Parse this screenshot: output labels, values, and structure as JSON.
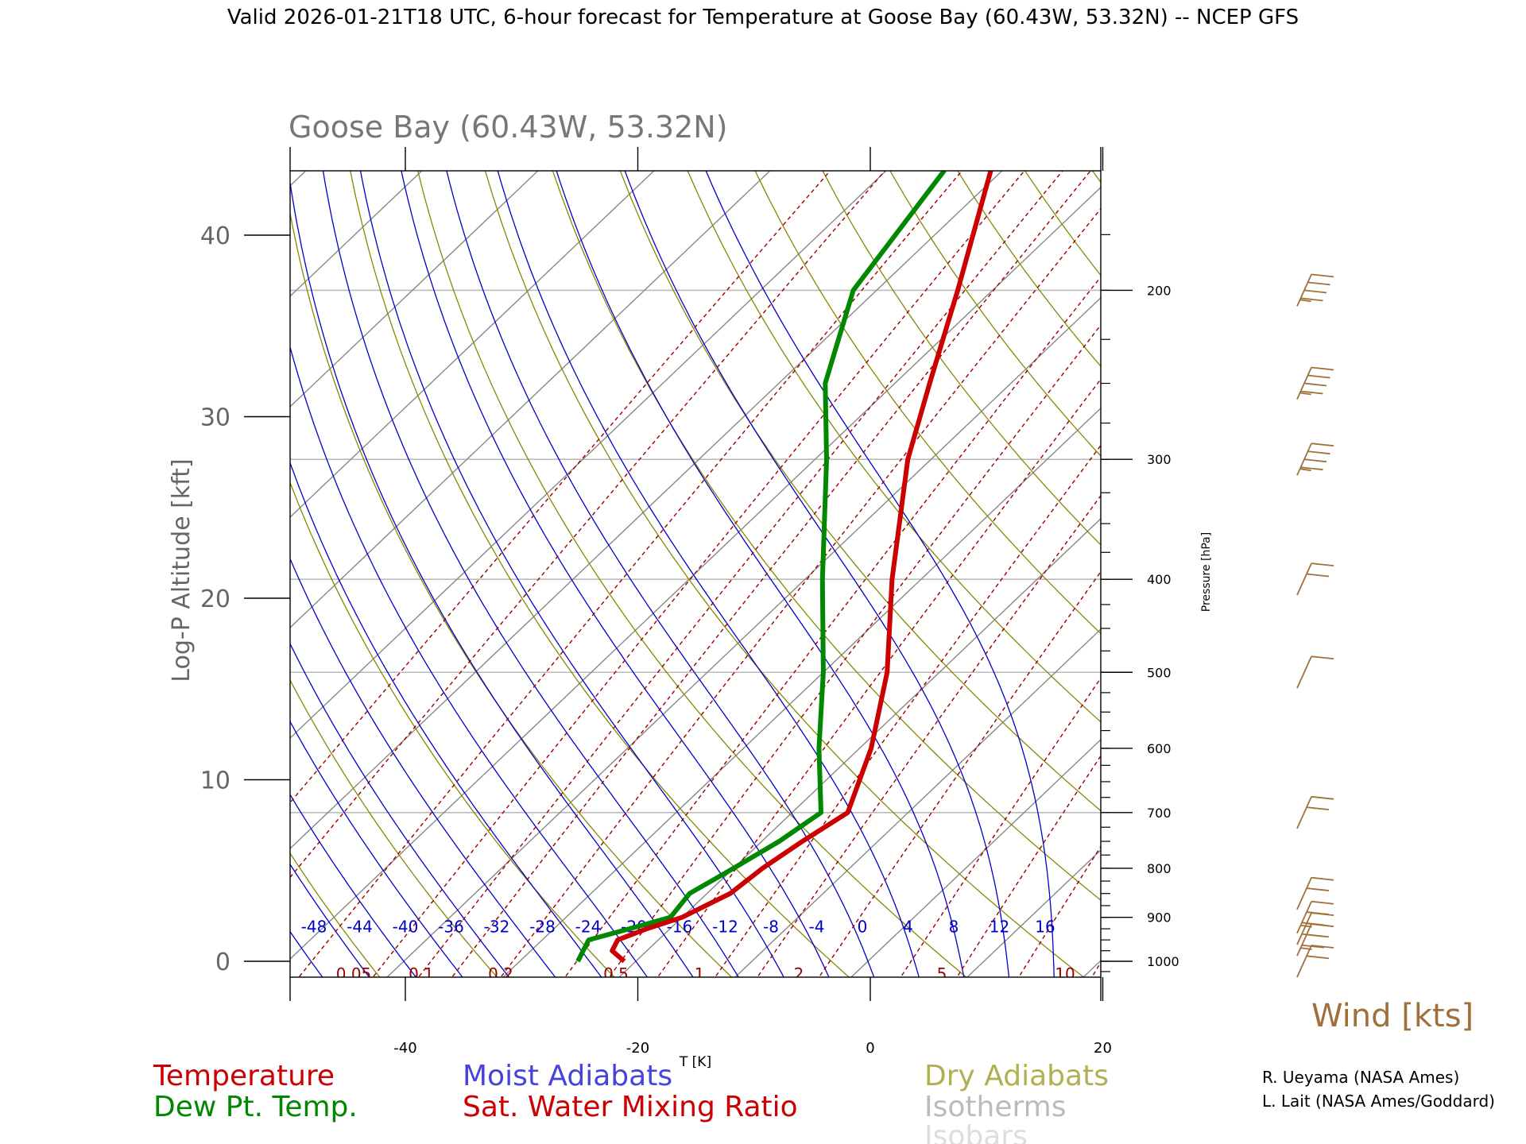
{
  "header": {
    "top_title": "Valid 2026-01-21T18 UTC, 6-hour forecast for Temperature at Goose Bay (60.43W, 53.32N) -- NCEP GFS",
    "plot_title": "Goose Bay (60.43W, 53.32N)"
  },
  "axes": {
    "ylabel": "Log-P Altitude [kft]",
    "xlabel": "T [K]",
    "pressure_label": "Pressure [hPa]",
    "y_ticks": [
      "0",
      "10",
      "20",
      "30",
      "40"
    ],
    "x_ticks": [
      "-40",
      "-20",
      "0",
      "20"
    ],
    "p_ticks": [
      "200",
      "300",
      "400",
      "500",
      "600",
      "700",
      "800",
      "900",
      "1000"
    ],
    "moist_labels": [
      "-48",
      "-44",
      "-40",
      "-36",
      "-32",
      "-28",
      "-24",
      "-20",
      "-16",
      "-12",
      "-8",
      "-4",
      "0",
      "4",
      "8",
      "12",
      "16"
    ],
    "mix_labels": [
      "0.05",
      "0.1",
      "0.2",
      "0.5",
      "1",
      "2",
      "5",
      "10"
    ]
  },
  "legend": {
    "temperature": "Temperature",
    "dewpoint": "Dew Pt. Temp.",
    "moist": "Moist Adiabats",
    "mixing": "Sat. Water Mixing Ratio",
    "dry": "Dry Adiabats",
    "isotherms": "Isotherms",
    "isobars": "Isobars",
    "wind": "Wind [kts]"
  },
  "credits": {
    "line1": "R. Ueyama (NASA Ames)",
    "line2": "L. Lait (NASA Ames/Goddard)"
  },
  "colors": {
    "temperature": "#cc0000",
    "dewpoint": "#008800",
    "moist": "#0000cc",
    "mixing": "#990000",
    "dry": "#888800",
    "isotherm": "#888888",
    "isobar": "#bbbbbb",
    "wind": "#a0703a"
  },
  "chart_data": {
    "type": "line",
    "x_axis": "T [K]",
    "xlim": [
      -50,
      20
    ],
    "ylim_kft": [
      -1,
      43
    ],
    "series": [
      {
        "name": "Temperature",
        "points": [
          {
            "p": 1000,
            "t": -21
          },
          {
            "p": 975,
            "t": -23
          },
          {
            "p": 950,
            "t": -23.5
          },
          {
            "p": 925,
            "t": -22
          },
          {
            "p": 900,
            "t": -20
          },
          {
            "p": 850,
            "t": -18
          },
          {
            "p": 800,
            "t": -17.5
          },
          {
            "p": 750,
            "t": -16.5
          },
          {
            "p": 700,
            "t": -15.2
          },
          {
            "p": 600,
            "t": -19
          },
          {
            "p": 500,
            "t": -24.5
          },
          {
            "p": 400,
            "t": -32.5
          },
          {
            "p": 300,
            "t": -42
          },
          {
            "p": 250,
            "t": -47
          },
          {
            "p": 200,
            "t": -53
          },
          {
            "p": 150,
            "t": -61
          }
        ]
      },
      {
        "name": "Dew Pt. Temp.",
        "points": [
          {
            "p": 1000,
            "t": -25
          },
          {
            "p": 950,
            "t": -26
          },
          {
            "p": 925,
            "t": -23.5
          },
          {
            "p": 900,
            "t": -21
          },
          {
            "p": 850,
            "t": -21.5
          },
          {
            "p": 800,
            "t": -20
          },
          {
            "p": 750,
            "t": -18.5
          },
          {
            "p": 700,
            "t": -17.5
          },
          {
            "p": 600,
            "t": -23.5
          },
          {
            "p": 500,
            "t": -30
          },
          {
            "p": 400,
            "t": -38.5
          },
          {
            "p": 300,
            "t": -49
          },
          {
            "p": 250,
            "t": -56
          },
          {
            "p": 200,
            "t": -62
          },
          {
            "p": 150,
            "t": -65
          }
        ]
      }
    ],
    "wind": [
      {
        "p": 1000,
        "kts": 20
      },
      {
        "p": 950,
        "kts": 25
      },
      {
        "p": 925,
        "kts": 30
      },
      {
        "p": 900,
        "kts": 25
      },
      {
        "p": 850,
        "kts": 20
      },
      {
        "p": 700,
        "kts": 20
      },
      {
        "p": 500,
        "kts": 10
      },
      {
        "p": 400,
        "kts": 20
      },
      {
        "p": 300,
        "kts": 35
      },
      {
        "p": 250,
        "kts": 35
      },
      {
        "p": 200,
        "kts": 35
      }
    ]
  }
}
